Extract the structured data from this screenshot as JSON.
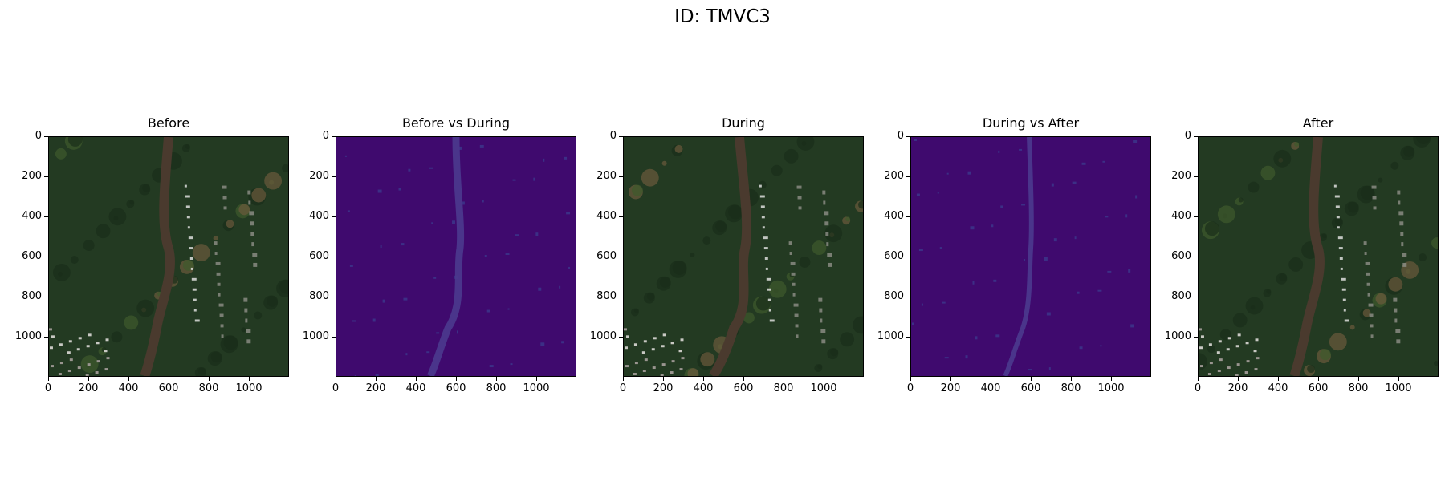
{
  "figure": {
    "title": "ID: TMVC3"
  },
  "axes": {
    "x_ticks": [
      0,
      200,
      400,
      600,
      800,
      1000
    ],
    "y_ticks": [
      0,
      200,
      400,
      600,
      800,
      1000
    ],
    "range": [
      0,
      1200
    ]
  },
  "panels": [
    {
      "title": "Before",
      "kind": "satellite",
      "palette": "rgb"
    },
    {
      "title": "Before vs During",
      "kind": "difference",
      "palette": "viridis-low"
    },
    {
      "title": "During",
      "kind": "satellite",
      "palette": "rgb"
    },
    {
      "title": "During vs After",
      "kind": "difference",
      "palette": "viridis-low"
    },
    {
      "title": "After",
      "kind": "satellite",
      "palette": "rgb"
    }
  ],
  "colors": {
    "vegetation": "#233a22",
    "river": "#4a3a2e",
    "urban": "#8e9088",
    "diff_base": "#3f0a6e",
    "diff_river": "#4b3a8e"
  }
}
